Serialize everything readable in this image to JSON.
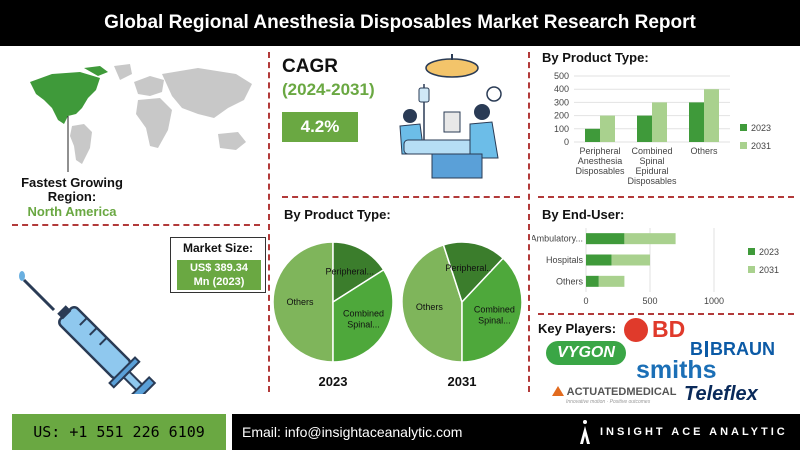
{
  "header": {
    "title": "Global Regional Anesthesia Disposables Market Research Report"
  },
  "region": {
    "label": "Fastest Growing Region:",
    "value": "North America"
  },
  "cagr": {
    "title": "CAGR",
    "period": "(2024-2031)",
    "value": "4.2%"
  },
  "market_size": {
    "label": "Market Size:",
    "value_line1": "US$ 389.34",
    "value_line2": "Mn (2023)"
  },
  "sections": {
    "product_type_top": "By Product Type:",
    "product_type_mid": "By Product Type:",
    "end_user": "By End-User:",
    "key_players": "Key Players:"
  },
  "colors": {
    "series_2023": "#3f9a3a",
    "series_2031": "#a9d18e",
    "pie_others": "#7fb55b",
    "pie_peripheral": "#3b7d2c",
    "pie_combined": "#4ea83b",
    "accent": "#6aa842",
    "divider": "#b23a3a"
  },
  "chart_data": [
    {
      "type": "bar",
      "title": "By Product Type:",
      "categories": [
        "Peripheral Anesthesia Disposables",
        "Combined Spinal Epidural Disposables",
        "Others"
      ],
      "category_lines": [
        [
          "Peripheral",
          "Anesthesia",
          "Disposables"
        ],
        [
          "Combined",
          "Spinal",
          "Epidural",
          "Disposables"
        ],
        [
          "Others"
        ]
      ],
      "series": [
        {
          "name": "2023",
          "values": [
            100,
            200,
            300
          ]
        },
        {
          "name": "2031",
          "values": [
            200,
            300,
            400
          ]
        }
      ],
      "ylim": [
        0,
        500
      ],
      "yticks": [
        0,
        100,
        200,
        300,
        400,
        500
      ],
      "legend": "right"
    },
    {
      "type": "bar",
      "orientation": "horizontal-stacked",
      "title": "By End-User:",
      "categories": [
        "Ambulatory...",
        "Hospitals",
        "Others"
      ],
      "series": [
        {
          "name": "2023",
          "values": [
            300,
            200,
            100
          ]
        },
        {
          "name": "2031",
          "values": [
            400,
            300,
            200
          ]
        }
      ],
      "xlim": [
        0,
        1000
      ],
      "xticks": [
        0,
        500,
        1000
      ],
      "legend": "right"
    },
    {
      "type": "pie",
      "title": "2023",
      "slices": [
        {
          "label": "Others",
          "value": 50
        },
        {
          "label": "Peripheral...",
          "value": 16
        },
        {
          "label": "Combined Spinal...",
          "value": 34
        }
      ]
    },
    {
      "type": "pie",
      "title": "2031",
      "slices": [
        {
          "label": "Others",
          "value": 45
        },
        {
          "label": "Peripheral...",
          "value": 17
        },
        {
          "label": "Combined Spinal...",
          "value": 38
        }
      ]
    }
  ],
  "key_players": {
    "vygon": "VYGON",
    "bd": "BD",
    "bbraun_b": "B",
    "bbraun_text": "BRAUN",
    "smiths": "smiths",
    "actuated": "ACTUATEDMEDICAL",
    "actuated_tag": "Innovative motion · Positive outcomes",
    "teleflex": "Teleflex"
  },
  "footer": {
    "phone": "US: +1 551 226 6109",
    "email": "Email: info@insightaceanalytic.com",
    "brand": "INSIGHT ACE ANALYTIC"
  }
}
